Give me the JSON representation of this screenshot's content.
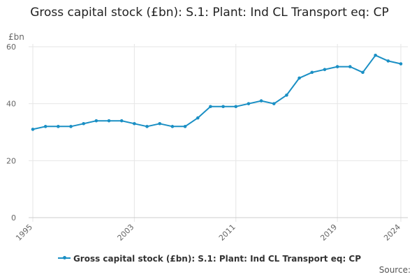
{
  "title": "Gross capital stock (£bn): S.1: Plant: Ind CL Transport eq: CP",
  "source_label": "Source:",
  "colors": {
    "series": "#1a8fc4",
    "grid": "#e6e6e6",
    "axis_text": "#666666"
  },
  "chart_data": {
    "type": "line",
    "title": "Gross capital stock (£bn): S.1: Plant: Ind CL Transport eq: CP",
    "ylabel": "£bn",
    "xlabel": "",
    "ylim": [
      0,
      60
    ],
    "yticks": [
      0,
      20,
      40,
      60
    ],
    "xlim": [
      1995,
      2024
    ],
    "xticks": [
      1995,
      2003,
      2011,
      2019,
      2024
    ],
    "grid": true,
    "legend": "bottom-center",
    "series": [
      {
        "name": "Gross capital stock (£bn): S.1: Plant: Ind CL Transport eq: CP",
        "x": [
          1995,
          1996,
          1997,
          1998,
          1999,
          2000,
          2001,
          2002,
          2003,
          2004,
          2005,
          2006,
          2007,
          2008,
          2009,
          2010,
          2011,
          2012,
          2013,
          2014,
          2015,
          2016,
          2017,
          2018,
          2019,
          2020,
          2021,
          2022,
          2023,
          2024
        ],
        "values": [
          31,
          32,
          32,
          32,
          33,
          34,
          34,
          34,
          33,
          32,
          33,
          32,
          32,
          35,
          39,
          39,
          39,
          40,
          41,
          40,
          43,
          49,
          51,
          52,
          53,
          53,
          51,
          57,
          55,
          54
        ]
      }
    ]
  }
}
